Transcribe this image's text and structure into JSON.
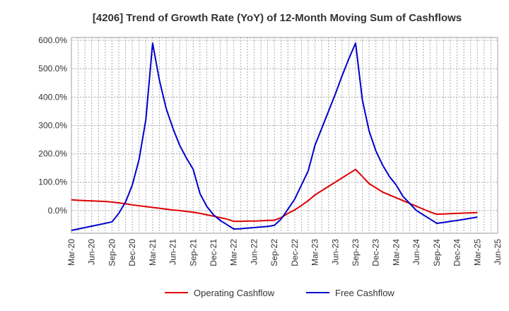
{
  "chart_data": {
    "type": "line",
    "title": "[4206]  Trend of Growth Rate (YoY) of 12-Month Moving Sum of Cashflows",
    "xlabel": "",
    "ylabel": "",
    "ylim": [
      -80,
      610
    ],
    "yticks": [
      0,
      100,
      200,
      300,
      400,
      500,
      600
    ],
    "ytick_labels": [
      "0.0%",
      "100.0%",
      "200.0%",
      "300.0%",
      "400.0%",
      "500.0%",
      "600.0%"
    ],
    "x_tick_labels": [
      "Mar-20",
      "Jun-20",
      "Sep-20",
      "Dec-20",
      "Mar-21",
      "Jun-21",
      "Sep-21",
      "Dec-21",
      "Mar-22",
      "Jun-22",
      "Sep-22",
      "Dec-22",
      "Mar-23",
      "Jun-23",
      "Sep-23",
      "Dec-23",
      "Mar-24",
      "Jun-24",
      "Sep-24",
      "Dec-24",
      "Mar-25",
      "Jun-25"
    ],
    "grid": true,
    "legend_position": "bottom",
    "x": [
      "Mar-20",
      "Apr-20",
      "May-20",
      "Jun-20",
      "Jul-20",
      "Aug-20",
      "Sep-20",
      "Oct-20",
      "Nov-20",
      "Dec-20",
      "Jan-21",
      "Feb-21",
      "Mar-21",
      "Apr-21",
      "May-21",
      "Jun-21",
      "Jul-21",
      "Aug-21",
      "Sep-21",
      "Oct-21",
      "Nov-21",
      "Dec-21",
      "Jan-22",
      "Feb-22",
      "Mar-22",
      "Apr-22",
      "May-22",
      "Jun-22",
      "Jul-22",
      "Aug-22",
      "Sep-22",
      "Oct-22",
      "Nov-22",
      "Dec-22",
      "Jan-23",
      "Feb-23",
      "Mar-23",
      "Apr-23",
      "May-23",
      "Jun-23",
      "Jul-23",
      "Aug-23",
      "Sep-23",
      "Oct-23",
      "Nov-23",
      "Dec-23",
      "Jan-24",
      "Feb-24",
      "Mar-24",
      "Apr-24",
      "May-24",
      "Jun-24",
      "Jul-24",
      "Aug-24",
      "Sep-24",
      "Oct-24",
      "Nov-24",
      "Dec-24",
      "Jan-25",
      "Feb-25",
      "Mar-25"
    ],
    "series": [
      {
        "name": "Operating Cashflow",
        "color": "#e00000",
        "values": [
          38,
          36,
          35,
          34,
          33,
          32,
          30,
          27,
          24,
          20,
          17,
          14,
          11,
          8,
          5,
          2,
          0,
          -3,
          -6,
          -10,
          -15,
          -20,
          -25,
          -30,
          -38,
          -38,
          -37,
          -37,
          -36,
          -35,
          -34,
          -25,
          -10,
          2,
          18,
          35,
          55,
          70,
          85,
          100,
          115,
          130,
          145,
          120,
          95,
          80,
          65,
          55,
          45,
          35,
          25,
          15,
          5,
          -5,
          -13,
          -12,
          -11,
          -10,
          -9,
          -8,
          -7
        ]
      },
      {
        "name": "Free Cashflow",
        "color": "#0000cc",
        "values": [
          -70,
          -65,
          -60,
          -55,
          -50,
          -45,
          -40,
          -10,
          30,
          90,
          180,
          320,
          590,
          460,
          360,
          290,
          230,
          185,
          145,
          60,
          15,
          -15,
          -35,
          -50,
          -65,
          -64,
          -62,
          -60,
          -58,
          -56,
          -52,
          -30,
          5,
          40,
          90,
          140,
          230,
          290,
          350,
          410,
          475,
          535,
          590,
          390,
          280,
          210,
          160,
          120,
          90,
          50,
          25,
          0,
          -15,
          -30,
          -45,
          -42,
          -38,
          -35,
          -31,
          -27,
          -23
        ]
      }
    ]
  }
}
